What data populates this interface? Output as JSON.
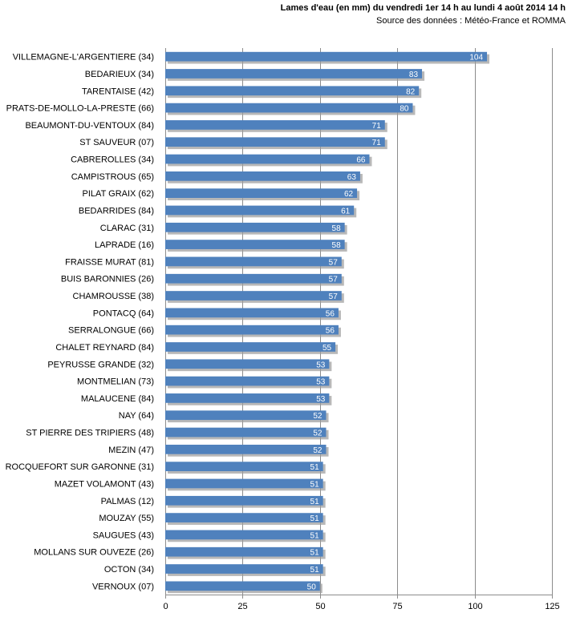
{
  "chart_data": {
    "type": "bar",
    "orientation": "horizontal",
    "title": "Lames d'eau (en mm) du vendredi 1er 14 h au lundi 4 août 2014 14 h",
    "subtitle": "Source des données : Météo-France et ROMMA",
    "xlabel": "",
    "ylabel": "",
    "xlim": [
      0,
      125
    ],
    "ticks": [
      0,
      25,
      50,
      75,
      100,
      125
    ],
    "grid": true,
    "bar_color": "#4f81bd",
    "categories": [
      "VILLEMAGNE-L'ARGENTIERE (34)",
      "BEDARIEUX (34)",
      "TARENTAISE (42)",
      "PRATS-DE-MOLLO-LA-PRESTE (66)",
      "BEAUMONT-DU-VENTOUX (84)",
      "ST SAUVEUR (07)",
      "CABREROLLES (34)",
      "CAMPISTROUS (65)",
      "PILAT GRAIX (62)",
      "BEDARRIDES (84)",
      "CLARAC (31)",
      "LAPRADE (16)",
      "FRAISSE MURAT (81)",
      "BUIS BARONNIES (26)",
      "CHAMROUSSE (38)",
      "PONTACQ (64)",
      "SERRALONGUE (66)",
      "CHALET REYNARD (84)",
      "PEYRUSSE GRANDE (32)",
      "MONTMELIAN (73)",
      "MALAUCENE (84)",
      "NAY (64)",
      "ST PIERRE DES TRIPIERS (48)",
      "MEZIN (47)",
      "ROCQUEFORT SUR GARONNE (31)",
      "MAZET VOLAMONT (43)",
      "PALMAS (12)",
      "MOUZAY (55)",
      "SAUGUES (43)",
      "MOLLANS SUR OUVEZE (26)",
      "OCTON (34)",
      "VERNOUX (07)"
    ],
    "values": [
      104,
      83,
      82,
      80,
      71,
      71,
      66,
      63,
      62,
      61,
      58,
      58,
      57,
      57,
      57,
      56,
      56,
      55,
      53,
      53,
      53,
      52,
      52,
      52,
      51,
      51,
      51,
      51,
      51,
      51,
      51,
      50
    ]
  }
}
